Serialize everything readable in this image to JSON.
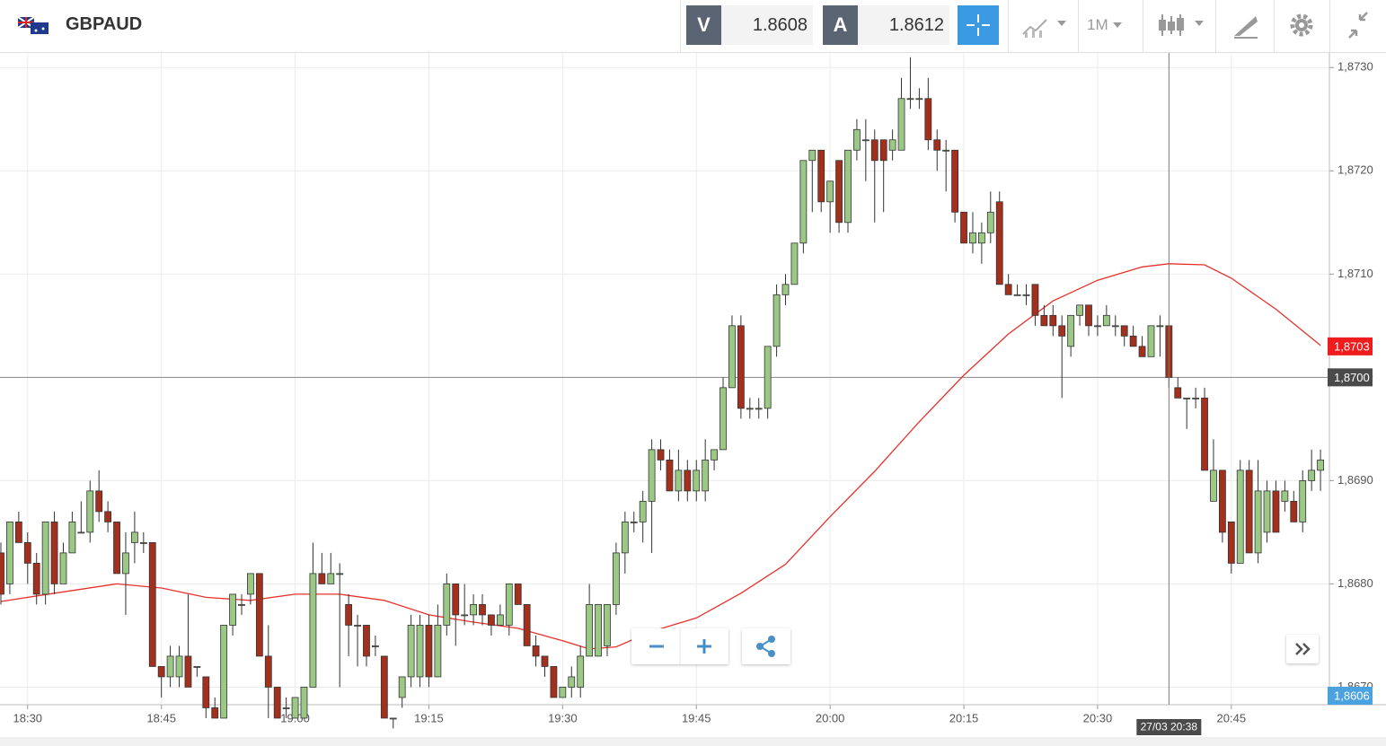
{
  "header": {
    "symbol": "GBPAUD",
    "bid_label": "V",
    "bid": "1.8608",
    "ask_label": "A",
    "ask": "1.8612",
    "timeframe": "1M"
  },
  "chart_data": {
    "type": "candlestick",
    "x": [
      "18:27",
      "18:28",
      "18:29",
      "18:30",
      "18:31",
      "18:32",
      "18:33",
      "18:34",
      "18:35",
      "18:36",
      "18:37",
      "18:38",
      "18:39",
      "18:40",
      "18:41",
      "18:42",
      "18:43",
      "18:44",
      "18:45",
      "18:46",
      "18:47",
      "18:48",
      "18:49",
      "18:50",
      "18:51",
      "18:52",
      "18:53",
      "18:54",
      "18:55",
      "18:56",
      "18:57",
      "18:58",
      "18:59",
      "19:00",
      "19:01",
      "19:02",
      "19:03",
      "19:04",
      "19:05",
      "19:06",
      "19:07",
      "19:08",
      "19:09",
      "19:10",
      "19:11",
      "19:12",
      "19:13",
      "19:14",
      "19:15",
      "19:16",
      "19:17",
      "19:18",
      "19:19",
      "19:20",
      "19:21",
      "19:22",
      "19:23",
      "19:24",
      "19:25",
      "19:26",
      "19:27",
      "19:28",
      "19:29",
      "19:30",
      "19:31",
      "19:32",
      "19:33",
      "19:34",
      "19:35",
      "19:36",
      "19:37",
      "19:38",
      "19:39",
      "19:40",
      "19:41",
      "19:42",
      "19:43",
      "19:44",
      "19:45",
      "19:46",
      "19:47",
      "19:48",
      "19:49",
      "19:50",
      "19:51",
      "19:52",
      "19:53",
      "19:54",
      "19:55",
      "19:56",
      "19:57",
      "19:58",
      "19:59",
      "20:00",
      "20:01",
      "20:02",
      "20:03",
      "20:04",
      "20:05",
      "20:06",
      "20:07",
      "20:08",
      "20:09",
      "20:10",
      "20:11",
      "20:12",
      "20:13",
      "20:14",
      "20:15",
      "20:16",
      "20:17",
      "20:18",
      "20:19",
      "20:20",
      "20:21",
      "20:22",
      "20:23",
      "20:24",
      "20:25",
      "20:26",
      "20:27",
      "20:28",
      "20:29",
      "20:30",
      "20:31",
      "20:32",
      "20:33",
      "20:34",
      "20:35",
      "20:36",
      "20:37",
      "20:38",
      "20:39",
      "20:40",
      "20:41",
      "20:42",
      "20:43",
      "20:44",
      "20:45",
      "20:46",
      "20:47",
      "20:48",
      "20:49",
      "20:50",
      "20:51",
      "20:52",
      "20:53",
      "20:54",
      "20:55"
    ],
    "open": [
      1.8683,
      1.868,
      1.8686,
      1.8684,
      1.8682,
      1.8679,
      1.8686,
      1.868,
      1.8683,
      1.8685,
      1.8685,
      1.8689,
      1.8687,
      1.8686,
      1.8681,
      1.8684,
      1.8684,
      1.8684,
      1.8672,
      1.8671,
      1.8671,
      1.8673,
      1.8672,
      1.8671,
      1.8668,
      1.8667,
      1.8676,
      1.8678,
      1.8679,
      1.8681,
      1.8673,
      1.867,
      1.8668,
      1.8667,
      1.8667,
      1.867,
      1.8681,
      1.868,
      1.8681,
      1.8678,
      1.8676,
      1.8676,
      1.8674,
      1.8673,
      1.8667,
      1.8669,
      1.8671,
      1.8671,
      1.8676,
      1.8671,
      1.8676,
      1.868,
      1.8677,
      1.8677,
      1.8678,
      1.8677,
      1.8676,
      1.8676,
      1.868,
      1.8678,
      1.8674,
      1.8673,
      1.8672,
      1.8669,
      1.867,
      1.867,
      1.8673,
      1.8673,
      1.8674,
      1.8678,
      1.8683,
      1.8686,
      1.8686,
      1.8688,
      1.8693,
      1.8692,
      1.8689,
      1.8691,
      1.8689,
      1.8689,
      1.8692,
      1.8693,
      1.8699,
      1.8705,
      1.8697,
      1.8697,
      1.8697,
      1.8703,
      1.8708,
      1.8709,
      1.8713,
      1.8721,
      1.8722,
      1.8717,
      1.8721,
      1.8715,
      1.8722,
      1.8723,
      1.8723,
      1.8723,
      1.8722,
      1.8722,
      1.8727,
      1.8727,
      1.8727,
      1.8723,
      1.8722,
      1.8722,
      1.8716,
      1.8713,
      1.8713,
      1.8714,
      1.8717,
      1.8709,
      1.8708,
      1.8708,
      1.8709,
      1.8706,
      1.8706,
      1.8705,
      1.8703,
      1.8706,
      1.8707,
      1.8705,
      1.8705,
      1.8705,
      1.8705,
      1.8704,
      1.8703,
      1.8702,
      1.8705,
      1.8705,
      1.8699,
      1.8698,
      1.8698,
      1.8698,
      1.8688,
      1.8691,
      1.8686,
      1.8682,
      1.8691,
      1.8683,
      1.8685,
      1.8689,
      1.8688,
      1.8688,
      1.8686,
      1.869,
      1.8691
    ],
    "high": [
      1.8684,
      1.8686,
      1.8687,
      1.8685,
      1.8683,
      1.8686,
      1.8687,
      1.8684,
      1.8687,
      1.8688,
      1.869,
      1.8691,
      1.8688,
      1.8686,
      1.8685,
      1.8687,
      1.8685,
      1.8684,
      1.8672,
      1.8674,
      1.8674,
      1.8679,
      1.8672,
      1.8671,
      1.8669,
      1.8676,
      1.8679,
      1.8679,
      1.8681,
      1.8681,
      1.8676,
      1.867,
      1.8669,
      1.8669,
      1.867,
      1.8684,
      1.8683,
      1.8683,
      1.8682,
      1.8679,
      1.8677,
      1.8676,
      1.8675,
      1.8673,
      1.8667,
      1.8671,
      1.8677,
      1.8677,
      1.8677,
      1.8678,
      1.8681,
      1.868,
      1.868,
      1.8679,
      1.8679,
      1.8677,
      1.8678,
      1.868,
      1.868,
      1.8678,
      1.8675,
      1.8673,
      1.8672,
      1.867,
      1.8672,
      1.8674,
      1.868,
      1.8678,
      1.8678,
      1.8684,
      1.8687,
      1.8687,
      1.8689,
      1.8694,
      1.8694,
      1.8693,
      1.8693,
      1.8692,
      1.8692,
      1.8694,
      1.8693,
      1.87,
      1.8706,
      1.8706,
      1.8698,
      1.8698,
      1.8703,
      1.8709,
      1.871,
      1.8713,
      1.8721,
      1.8722,
      1.8722,
      1.8719,
      1.8721,
      1.8722,
      1.8725,
      1.8725,
      1.8724,
      1.8723,
      1.8724,
      1.8729,
      1.8731,
      1.8728,
      1.8729,
      1.8724,
      1.8723,
      1.8722,
      1.8716,
      1.8716,
      1.8715,
      1.8718,
      1.8718,
      1.871,
      1.8709,
      1.8709,
      1.8709,
      1.8707,
      1.8707,
      1.8706,
      1.8706,
      1.8707,
      1.8707,
      1.8706,
      1.8707,
      1.8706,
      1.8705,
      1.8705,
      1.8704,
      1.8705,
      1.8706,
      1.8705,
      1.87,
      1.8698,
      1.8699,
      1.8699,
      1.8694,
      1.8691,
      1.8686,
      1.8692,
      1.8692,
      1.8692,
      1.869,
      1.869,
      1.869,
      1.8689,
      1.8691,
      1.8693,
      1.8693
    ],
    "low": [
      1.8678,
      1.8679,
      1.8684,
      1.868,
      1.8678,
      1.8678,
      1.8679,
      1.868,
      1.8683,
      1.8685,
      1.8684,
      1.8686,
      1.8685,
      1.8681,
      1.8677,
      1.8682,
      1.8683,
      1.8672,
      1.8669,
      1.867,
      1.867,
      1.867,
      1.8671,
      1.8667,
      1.8667,
      1.8667,
      1.8675,
      1.8677,
      1.8678,
      1.8673,
      1.8667,
      1.8667,
      1.8667,
      1.8667,
      1.8667,
      1.867,
      1.868,
      1.868,
      1.867,
      1.8673,
      1.8672,
      1.8672,
      1.8673,
      1.8667,
      1.8666,
      1.8668,
      1.867,
      1.867,
      1.867,
      1.8671,
      1.8675,
      1.8674,
      1.8676,
      1.8676,
      1.8676,
      1.8675,
      1.8676,
      1.8675,
      1.8678,
      1.8674,
      1.8672,
      1.8671,
      1.8669,
      1.8669,
      1.8669,
      1.8669,
      1.8673,
      1.8673,
      1.8673,
      1.8677,
      1.8681,
      1.8685,
      1.8684,
      1.8683,
      1.8691,
      1.8689,
      1.8688,
      1.8688,
      1.8688,
      1.8688,
      1.8691,
      1.8693,
      1.8699,
      1.8696,
      1.8696,
      1.8696,
      1.8696,
      1.8702,
      1.8707,
      1.8709,
      1.8712,
      1.8716,
      1.8716,
      1.8714,
      1.8714,
      1.8714,
      1.8721,
      1.8719,
      1.8715,
      1.8716,
      1.8721,
      1.8722,
      1.8726,
      1.8726,
      1.8722,
      1.872,
      1.8718,
      1.8715,
      1.8713,
      1.8712,
      1.8711,
      1.8713,
      1.8709,
      1.8708,
      1.8708,
      1.8707,
      1.8705,
      1.8705,
      1.8704,
      1.8698,
      1.8702,
      1.8705,
      1.8704,
      1.8704,
      1.8705,
      1.8704,
      1.8703,
      1.8703,
      1.8702,
      1.8702,
      1.8702,
      1.8699,
      1.8698,
      1.8695,
      1.8697,
      1.8691,
      1.8688,
      1.8684,
      1.8681,
      1.8682,
      1.8683,
      1.8682,
      1.8684,
      1.8685,
      1.8687,
      1.8686,
      1.8685,
      1.8689,
      1.8689
    ],
    "close": [
      1.8679,
      1.8686,
      1.8684,
      1.8682,
      1.8679,
      1.8686,
      1.868,
      1.8683,
      1.8686,
      1.8685,
      1.8689,
      1.8687,
      1.8686,
      1.8681,
      1.8683,
      1.8685,
      1.8684,
      1.8672,
      1.8671,
      1.8673,
      1.8673,
      1.867,
      1.8672,
      1.8668,
      1.8667,
      1.8676,
      1.8679,
      1.8678,
      1.8681,
      1.8673,
      1.867,
      1.8667,
      1.8668,
      1.8669,
      1.867,
      1.8681,
      1.868,
      1.8681,
      1.8681,
      1.8676,
      1.8676,
      1.8673,
      1.8674,
      1.8667,
      1.8667,
      1.8671,
      1.8676,
      1.8676,
      1.8671,
      1.8676,
      1.868,
      1.8677,
      1.8677,
      1.8678,
      1.8677,
      1.8676,
      1.8677,
      1.868,
      1.8678,
      1.8674,
      1.8673,
      1.8672,
      1.8669,
      1.867,
      1.8671,
      1.8673,
      1.8678,
      1.8678,
      1.8678,
      1.8683,
      1.8686,
      1.8686,
      1.8688,
      1.8693,
      1.8692,
      1.8689,
      1.8691,
      1.8689,
      1.8691,
      1.8692,
      1.8693,
      1.8699,
      1.8705,
      1.8697,
      1.8697,
      1.8697,
      1.8703,
      1.8708,
      1.8709,
      1.8713,
      1.8721,
      1.8722,
      1.8717,
      1.8719,
      1.8715,
      1.8722,
      1.8724,
      1.8723,
      1.8721,
      1.8721,
      1.8723,
      1.8727,
      1.8727,
      1.8727,
      1.8723,
      1.8722,
      1.8722,
      1.8716,
      1.8713,
      1.8714,
      1.8714,
      1.8716,
      1.8709,
      1.8708,
      1.8708,
      1.8708,
      1.8706,
      1.8705,
      1.8705,
      1.8704,
      1.8706,
      1.8707,
      1.8705,
      1.8705,
      1.8706,
      1.8705,
      1.8704,
      1.8703,
      1.8702,
      1.8705,
      1.8705,
      1.87,
      1.8698,
      1.8698,
      1.8698,
      1.8691,
      1.8691,
      1.8685,
      1.8682,
      1.8691,
      1.8683,
      1.8689,
      1.8689,
      1.8685,
      1.8689,
      1.8686,
      1.869,
      1.8691,
      1.8692
    ],
    "up_color": "#9cc886",
    "down_color": "#a3301d",
    "ma": {
      "color": "#e8312b",
      "x": [
        "18:27",
        "18:33",
        "18:40",
        "18:45",
        "18:50",
        "18:55",
        "19:00",
        "19:05",
        "19:10",
        "19:15",
        "19:20",
        "19:25",
        "19:30",
        "19:33",
        "19:36",
        "19:40",
        "19:45",
        "19:50",
        "19:55",
        "20:00",
        "20:05",
        "20:10",
        "20:15",
        "20:20",
        "20:25",
        "20:30",
        "20:35",
        "20:38",
        "20:42",
        "20:45",
        "20:50",
        "20:55"
      ],
      "values": [
        1.86783,
        1.86791,
        1.868,
        1.86796,
        1.86787,
        1.86784,
        1.8679,
        1.8679,
        1.86784,
        1.8677,
        1.86763,
        1.86757,
        1.86745,
        1.86737,
        1.86739,
        1.86754,
        1.86767,
        1.86791,
        1.86819,
        1.86865,
        1.86909,
        1.86957,
        1.87002,
        1.87042,
        1.87074,
        1.87094,
        1.87107,
        1.8711,
        1.87109,
        1.87096,
        1.87066,
        1.87031
      ],
      "last": {
        "value": 1.8703,
        "label": "1,8703"
      }
    },
    "crosshair": {
      "y": {
        "value": 1.87,
        "label": "1,8700"
      },
      "x": "20:38",
      "x_label": "27/03 20:38"
    },
    "price_tag": "1,8606",
    "xlim": [
      "18:27",
      "20:56"
    ],
    "xticks": [
      "18:30",
      "18:45",
      "19:00",
      "19:15",
      "19:30",
      "19:45",
      "20:00",
      "20:15",
      "20:30",
      "20:45"
    ],
    "ylim": [
      1.86683,
      1.87315
    ],
    "yticks": [
      {
        "value": 1.873,
        "label": "1,8730"
      },
      {
        "value": 1.872,
        "label": "1,8720"
      },
      {
        "value": 1.871,
        "label": "1,8710"
      },
      {
        "value": 1.87,
        "label": "1,8700"
      },
      {
        "value": 1.869,
        "label": "1,8690"
      },
      {
        "value": 1.868,
        "label": "1,8680"
      },
      {
        "value": 1.867,
        "label": "1,8670"
      }
    ],
    "grid": true
  }
}
